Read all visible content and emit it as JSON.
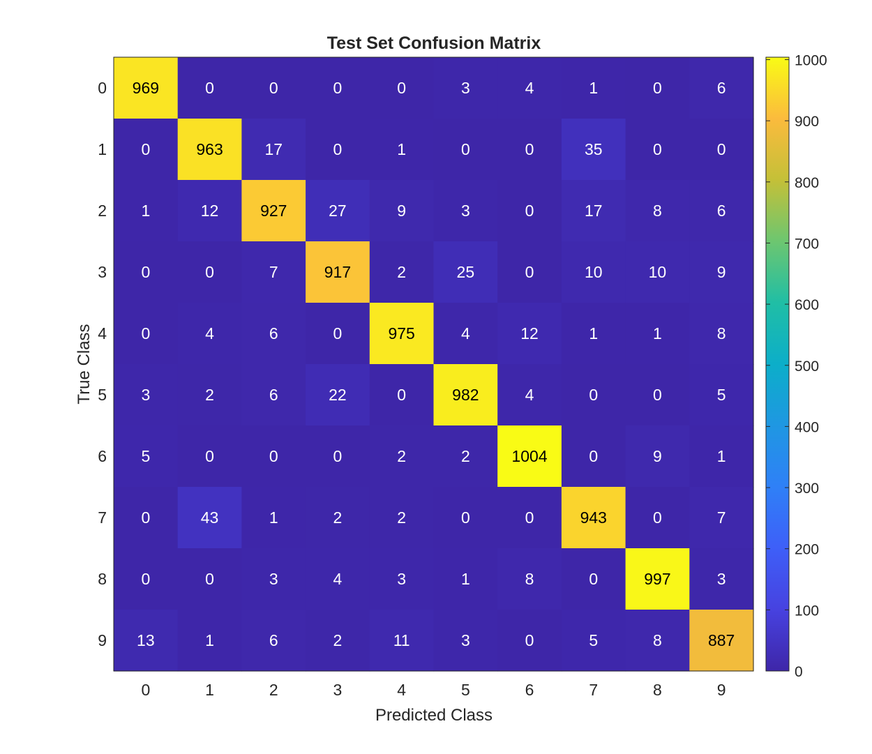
{
  "chart_data": {
    "type": "heatmap",
    "title": "Test Set Confusion Matrix",
    "xlabel": "Predicted Class",
    "ylabel": "True Class",
    "x_categories": [
      "0",
      "1",
      "2",
      "3",
      "4",
      "5",
      "6",
      "7",
      "8",
      "9"
    ],
    "y_categories": [
      "0",
      "1",
      "2",
      "3",
      "4",
      "5",
      "6",
      "7",
      "8",
      "9"
    ],
    "values": [
      [
        969,
        0,
        0,
        0,
        0,
        3,
        4,
        1,
        0,
        6
      ],
      [
        0,
        963,
        17,
        0,
        1,
        0,
        0,
        35,
        0,
        0
      ],
      [
        1,
        12,
        927,
        27,
        9,
        3,
        0,
        17,
        8,
        6
      ],
      [
        0,
        0,
        7,
        917,
        2,
        25,
        0,
        10,
        10,
        9
      ],
      [
        0,
        4,
        6,
        0,
        975,
        4,
        12,
        1,
        1,
        8
      ],
      [
        3,
        2,
        6,
        22,
        0,
        982,
        4,
        0,
        0,
        5
      ],
      [
        5,
        0,
        0,
        0,
        2,
        2,
        1004,
        0,
        9,
        1
      ],
      [
        0,
        43,
        1,
        2,
        2,
        0,
        0,
        943,
        0,
        7
      ],
      [
        0,
        0,
        3,
        4,
        3,
        1,
        8,
        0,
        997,
        3
      ],
      [
        13,
        1,
        6,
        2,
        11,
        3,
        0,
        5,
        8,
        887
      ]
    ],
    "colorbar": {
      "range": [
        0,
        1004
      ],
      "ticks": [
        "0",
        "100",
        "200",
        "300",
        "400",
        "500",
        "600",
        "700",
        "800",
        "900",
        "1000"
      ],
      "colormap": "parula"
    },
    "grid": false,
    "legend": "colorbar-right"
  }
}
